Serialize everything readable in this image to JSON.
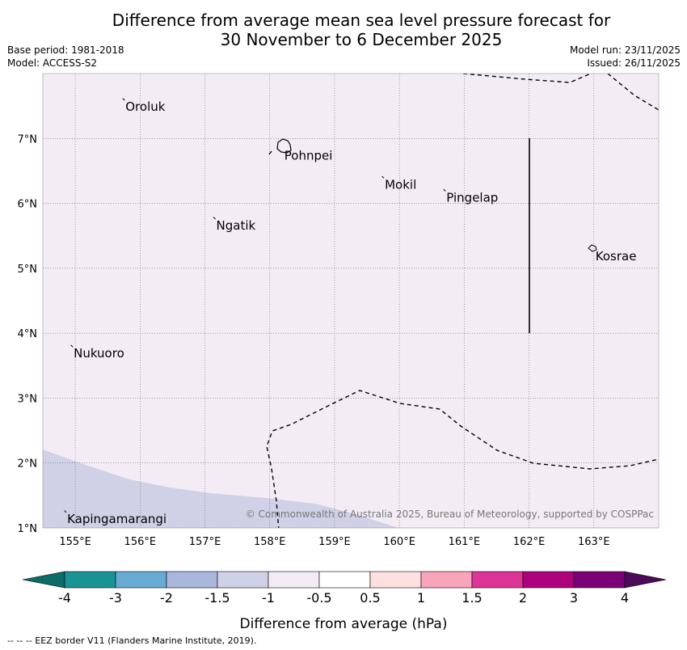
{
  "header": {
    "title_line1": "Difference from average mean sea level pressure forecast for",
    "title_line2": "30 November to 6 December 2025",
    "base_period": "Base period: 1981-2018",
    "model": "Model: ACCESS-S2",
    "model_run": "Model run: 23/11/2025",
    "issued": "Issued: 26/11/2025"
  },
  "map": {
    "lon_range": [
      154.5,
      164
    ],
    "lat_range": [
      1,
      8
    ],
    "background_color": "#f4ecf5",
    "lon_ticks": [
      "155°E",
      "156°E",
      "157°E",
      "158°E",
      "159°E",
      "160°E",
      "161°E",
      "162°E",
      "163°E"
    ],
    "lat_ticks": [
      "1°N",
      "2°N",
      "3°N",
      "4°N",
      "5°N",
      "6°N",
      "7°N"
    ],
    "places": [
      {
        "name": "Oroluk",
        "lon": 155.75,
        "lat": 7.6
      },
      {
        "name": "Pohnpei",
        "lon": 158.2,
        "lat": 6.85
      },
      {
        "name": "Mokil",
        "lon": 159.75,
        "lat": 6.4
      },
      {
        "name": "Pingelap",
        "lon": 160.7,
        "lat": 6.2
      },
      {
        "name": "Ngatik",
        "lon": 157.15,
        "lat": 5.77
      },
      {
        "name": "Kosrae",
        "lon": 163.0,
        "lat": 5.3
      },
      {
        "name": "Nukuoro",
        "lon": 154.95,
        "lat": 3.8
      },
      {
        "name": "Kapingamarangi",
        "lon": 154.85,
        "lat": 1.25
      }
    ],
    "copyright": "© Commonwealth of Australia 2025, Bureau of Meteorology, supported by COSPPac"
  },
  "colorbar": {
    "tick_labels": [
      "-4",
      "-3",
      "-2",
      "-1.5",
      "-1",
      "-0.5",
      "0.5",
      "1",
      "1.5",
      "2",
      "3",
      "4"
    ],
    "under_color": "#0d6b68",
    "over_color": "#4b0a5a",
    "colors": [
      "#1a9396",
      "#67abd3",
      "#a9b7dd",
      "#d0d1e6",
      "#f4ecf5",
      "#ffffff",
      "#fde0e0",
      "#f9a4bd",
      "#dd3497",
      "#ae017e",
      "#7a0177"
    ],
    "label": "Difference from average (hPa)"
  },
  "footer": {
    "legend_text": "--  --  -- EEZ border V11 (Flanders Marine Institute, 2019)."
  }
}
